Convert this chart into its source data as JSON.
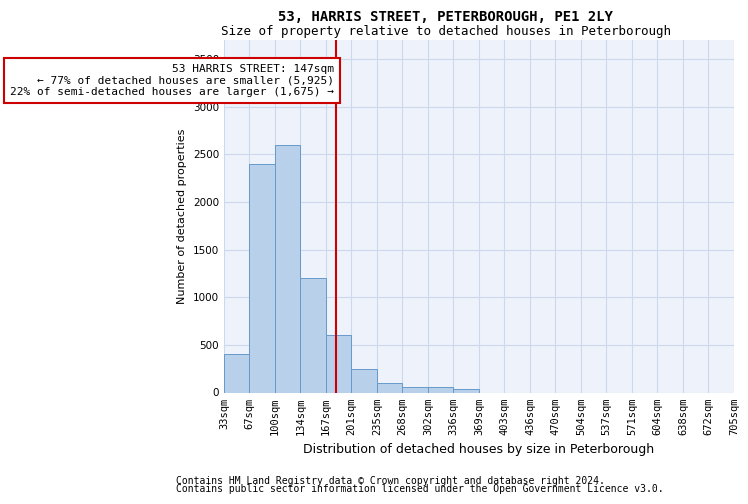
{
  "title": "53, HARRIS STREET, PETERBOROUGH, PE1 2LY",
  "subtitle": "Size of property relative to detached houses in Peterborough",
  "xlabel": "Distribution of detached houses by size in Peterborough",
  "ylabel": "Number of detached properties",
  "footnote1": "Contains HM Land Registry data © Crown copyright and database right 2024.",
  "footnote2": "Contains public sector information licensed under the Open Government Licence v3.0.",
  "annotation_title": "53 HARRIS STREET: 147sqm",
  "annotation_line1": "← 77% of detached houses are smaller (5,925)",
  "annotation_line2": "22% of semi-detached houses are larger (1,675) →",
  "property_line_x": 4,
  "bar_heights": [
    400,
    2400,
    2600,
    1200,
    600,
    250,
    100,
    60,
    60,
    40,
    0,
    0,
    0,
    0,
    0,
    0,
    0,
    0,
    0,
    0
  ],
  "x_tick_labels": [
    "33sqm",
    "67sqm",
    "100sqm",
    "134sqm",
    "167sqm",
    "201sqm",
    "235sqm",
    "268sqm",
    "302sqm",
    "336sqm",
    "369sqm",
    "403sqm",
    "436sqm",
    "470sqm",
    "504sqm",
    "537sqm",
    "571sqm",
    "604sqm",
    "638sqm",
    "672sqm",
    "705sqm"
  ],
  "ylim": [
    0,
    3700
  ],
  "bar_color": "#b8d0ea",
  "bar_edge_color": "#6699cc",
  "grid_color": "#ccd8ee",
  "bg_color": "#eef2fa",
  "line_color": "#cc0000",
  "box_color": "#cc0000",
  "title_fontsize": 10,
  "subtitle_fontsize": 9,
  "annotation_fontsize": 8,
  "ylabel_fontsize": 8,
  "xlabel_fontsize": 9,
  "tick_fontsize": 7.5,
  "footnote_fontsize": 7
}
